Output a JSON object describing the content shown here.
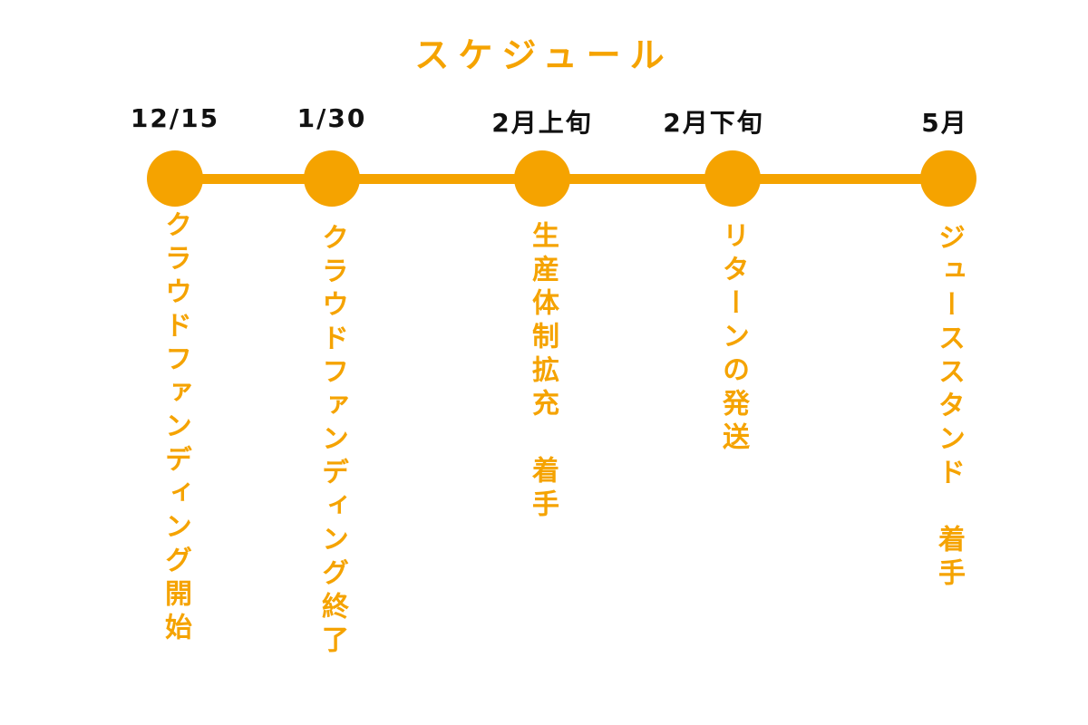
{
  "title": "スケジュール",
  "accent_color": "#F5A300",
  "milestones": [
    {
      "date": "12/15",
      "description": "クラウドファンディング開始"
    },
    {
      "date": "1/30",
      "description": "クラウドファンディング終了"
    },
    {
      "date": "2月上旬",
      "description": "生産体制拡充　着手"
    },
    {
      "date": "2月下旬",
      "description": "リターンの発送"
    },
    {
      "date": "5月",
      "description": "ジューススタンド　着手"
    }
  ]
}
